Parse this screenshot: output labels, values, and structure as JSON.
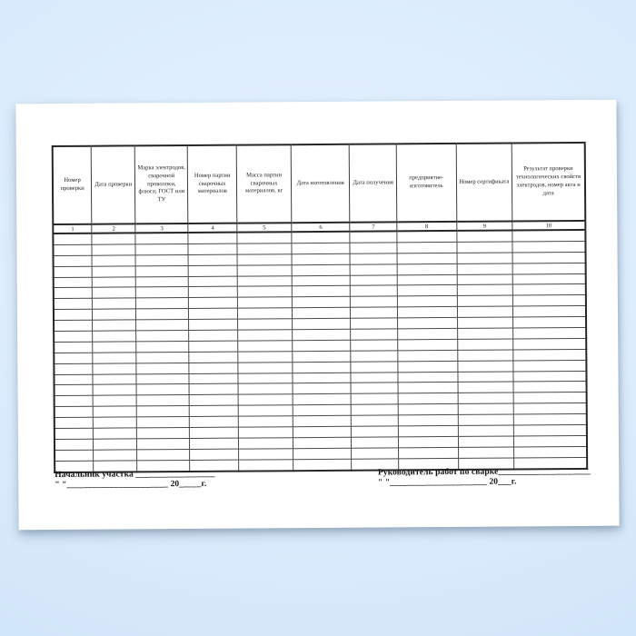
{
  "document": {
    "table": {
      "columns": [
        {
          "num": "1",
          "label": "Номер проверки"
        },
        {
          "num": "2",
          "label": "Дата проверки"
        },
        {
          "num": "3",
          "label": "Марка электродов, сварочной проволоки, флюса; ГОСТ или ТУ"
        },
        {
          "num": "4",
          "label": "Номер партии сварочных материалов"
        },
        {
          "num": "5",
          "label": "Масса партии сварочных материалов, кг"
        },
        {
          "num": "6",
          "label": "Дата изготовления"
        },
        {
          "num": "7",
          "label": "Дата получения"
        },
        {
          "num": "8",
          "label": "предприятие-изготовитель"
        },
        {
          "num": "9",
          "label": "Номер сертификата"
        },
        {
          "num": "10",
          "label": "Результат проверки технологических свойств электродов, номер акта и дата"
        }
      ],
      "blank_row_count": 22
    },
    "signatures": {
      "left": {
        "title": "Начальник участка ",
        "line1_blank": "__________________",
        "quote_marks": "\"  \"",
        "line2_blank": "_______________________",
        "year_prefix": " 20",
        "year_blank": "_____",
        "year_suffix": "г."
      },
      "right": {
        "title": "Руководитель работ по сварке",
        "line1_blank": "_____________________",
        "quote_marks": "\"  \"",
        "line2_blank": "______________________",
        "year_prefix": " 20",
        "year_blank": "___",
        "year_suffix": "г."
      }
    },
    "colors": {
      "background_blue": "#d7e9fb",
      "sheet_white": "#ffffff",
      "grid_line": "#3d3d3d",
      "heavy_line": "#262626",
      "text": "#1c1c1c"
    }
  }
}
